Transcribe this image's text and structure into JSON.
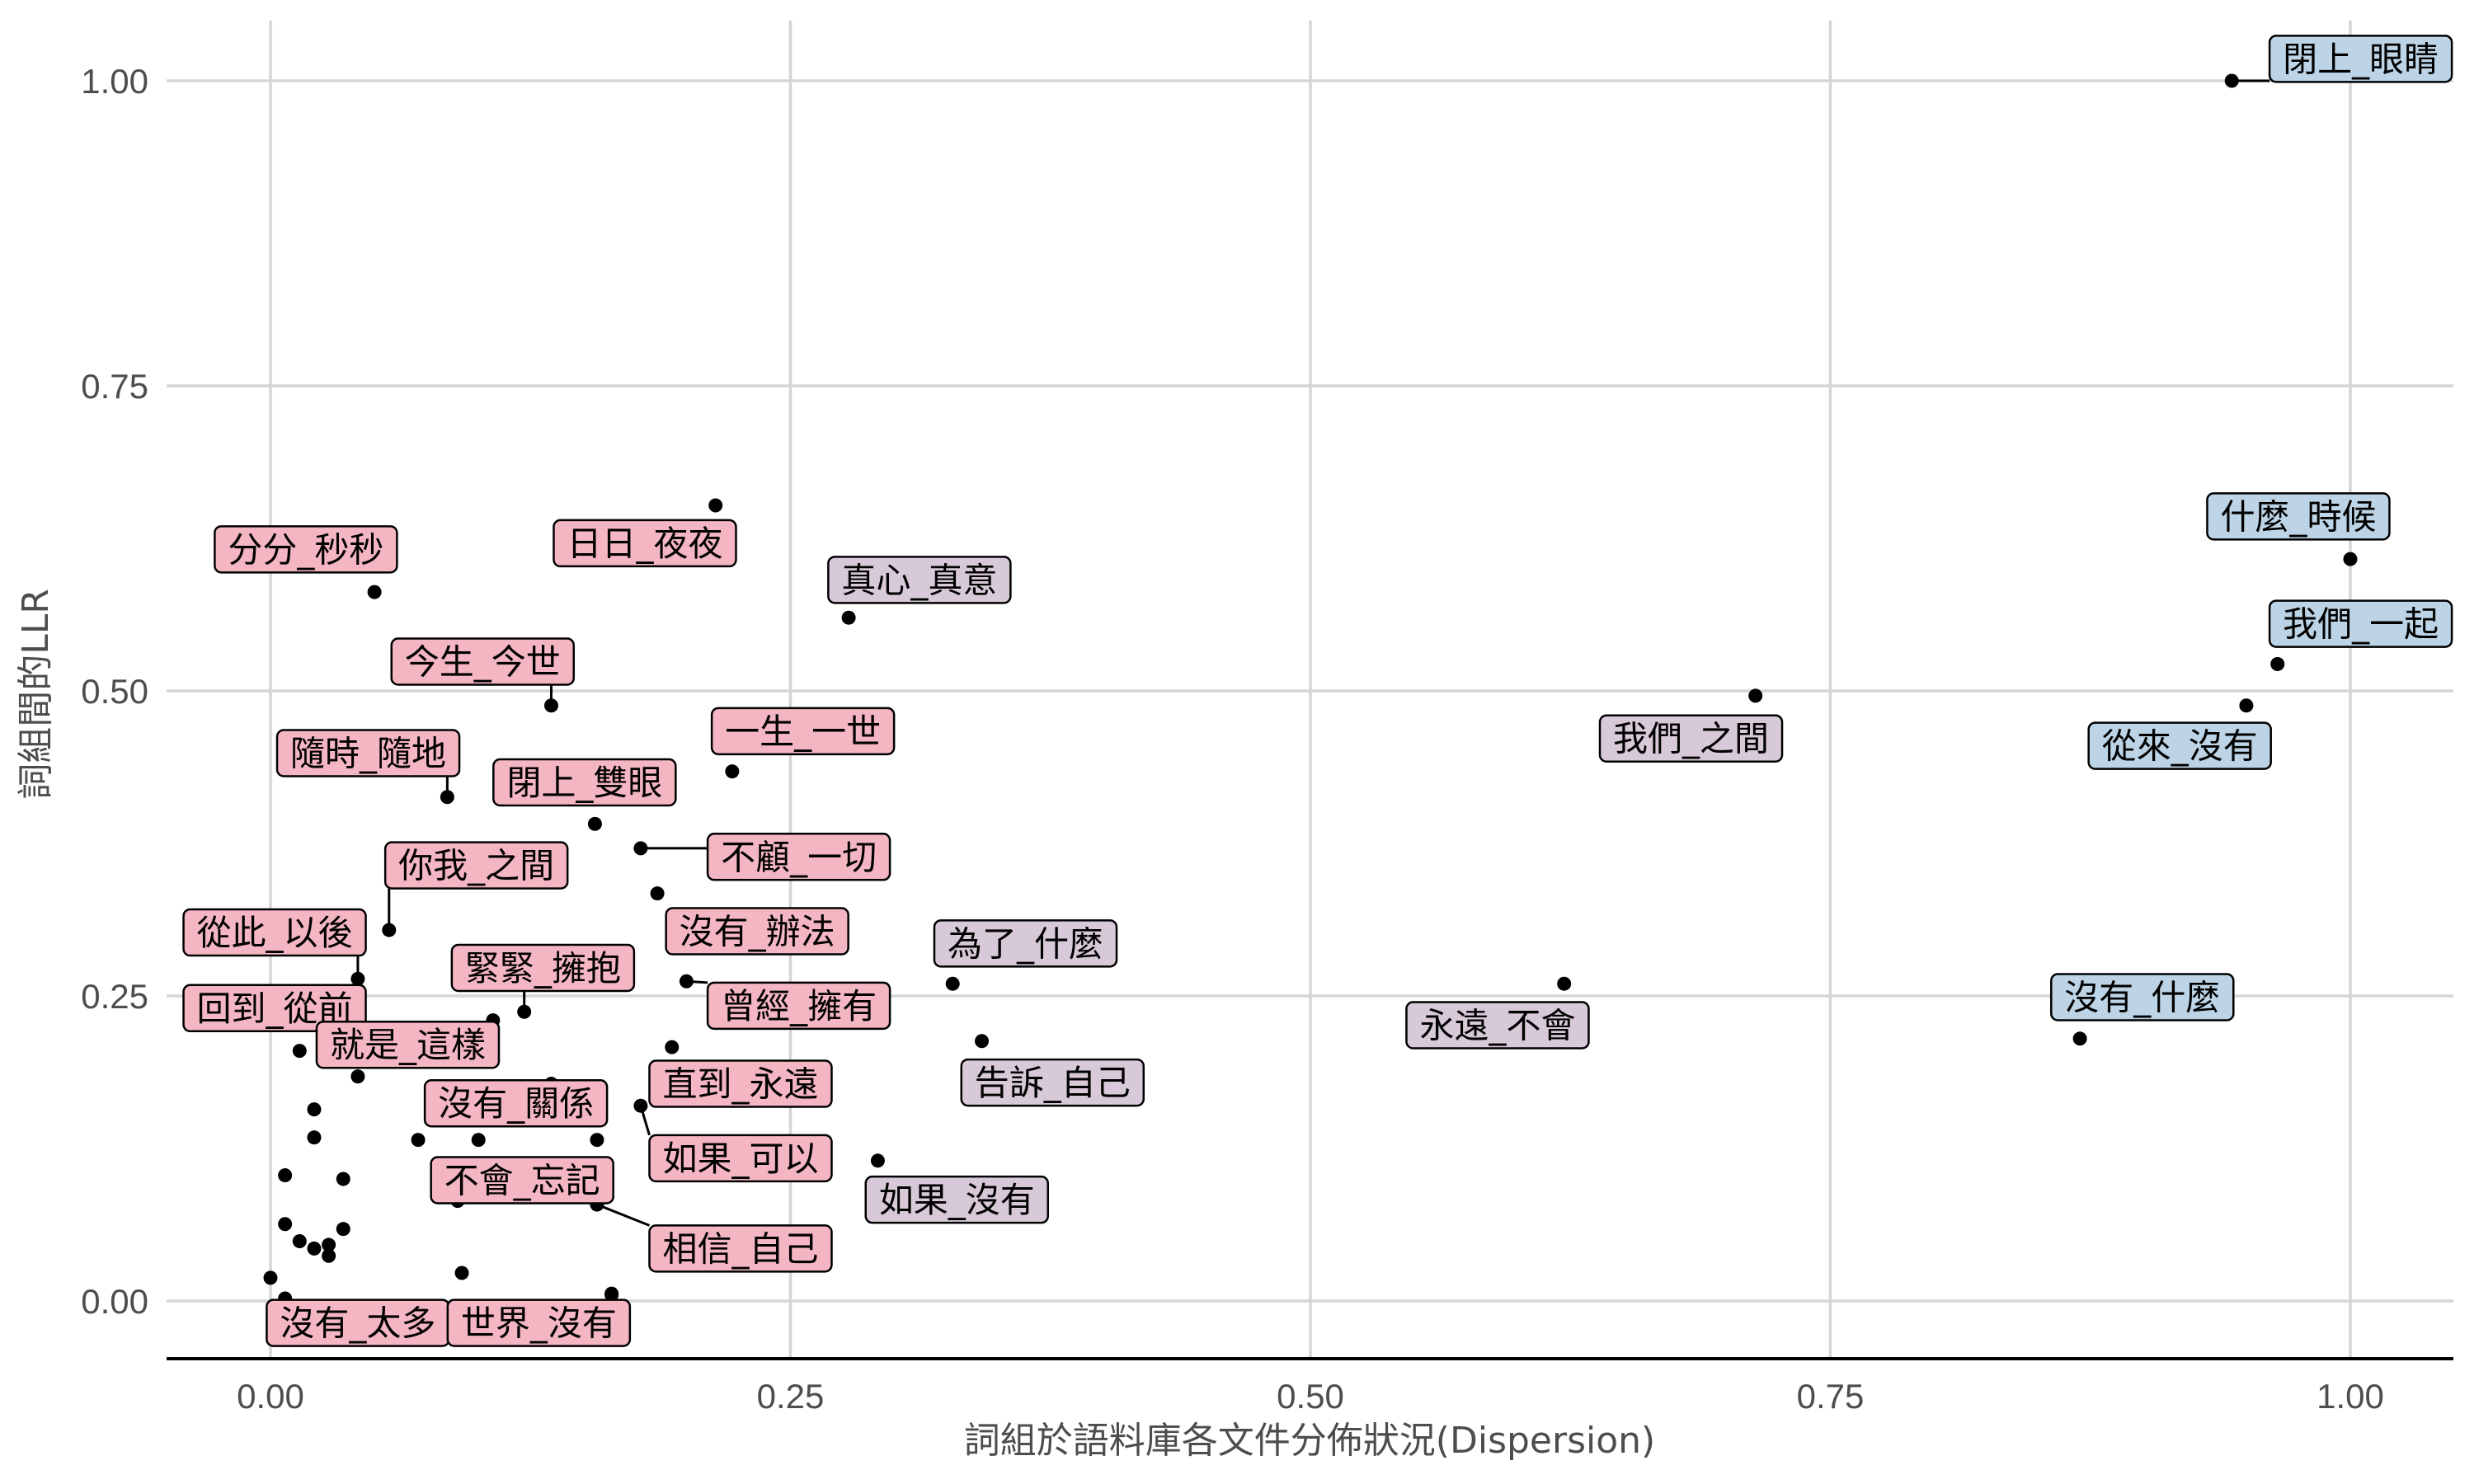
{
  "chart_data": {
    "type": "scatter",
    "title": "",
    "xlabel": "詞組於語料庫各文件分佈狀況(Dispersion)",
    "ylabel": "詞組間的LLR",
    "xlim": [
      -0.05,
      1.05
    ],
    "ylim": [
      -0.048,
      1.05
    ],
    "xticks": [
      0.0,
      0.25,
      0.5,
      0.75,
      1.0
    ],
    "xtick_labels": [
      "0.00",
      "0.25",
      "0.50",
      "0.75",
      "1.00"
    ],
    "yticks": [
      0.0,
      0.25,
      0.5,
      0.75,
      1.0
    ],
    "ytick_labels": [
      "0.00",
      "0.25",
      "0.50",
      "0.75",
      "1.00"
    ],
    "grid": true,
    "colors": {
      "high": "#bcd4e6",
      "mid": "#d8c9d8",
      "low": "#f4b6c2"
    },
    "labeled_points": [
      {
        "label": "閉上_眼睛",
        "x": 0.943,
        "y": 1.0,
        "group": "high",
        "lx": 1.005,
        "ly": 1.018
      },
      {
        "label": "什麼_時候",
        "x": 1.0,
        "y": 0.608,
        "group": "high",
        "lx": 0.975,
        "ly": 0.643
      },
      {
        "label": "我們_一起",
        "x": 0.965,
        "y": 0.522,
        "group": "high",
        "lx": 1.005,
        "ly": 0.555
      },
      {
        "label": "從來_沒有",
        "x": 0.95,
        "y": 0.488,
        "group": "high",
        "lx": 0.918,
        "ly": 0.455
      },
      {
        "label": "沒有_什麼",
        "x": 0.87,
        "y": 0.215,
        "group": "high",
        "lx": 0.9,
        "ly": 0.249
      },
      {
        "label": "我們_之間",
        "x": 0.714,
        "y": 0.496,
        "group": "mid",
        "lx": 0.683,
        "ly": 0.461
      },
      {
        "label": "永遠_不會",
        "x": 0.622,
        "y": 0.26,
        "group": "mid",
        "lx": 0.59,
        "ly": 0.226
      },
      {
        "label": "真心_真意",
        "x": 0.278,
        "y": 0.56,
        "group": "mid",
        "lx": 0.312,
        "ly": 0.591
      },
      {
        "label": "為了_什麼",
        "x": 0.328,
        "y": 0.26,
        "group": "mid",
        "lx": 0.363,
        "ly": 0.293
      },
      {
        "label": "告訴_自己",
        "x": 0.342,
        "y": 0.213,
        "group": "mid",
        "lx": 0.376,
        "ly": 0.179
      },
      {
        "label": "如果_沒有",
        "x": 0.292,
        "y": 0.115,
        "group": "mid",
        "lx": 0.33,
        "ly": 0.083
      },
      {
        "label": "日日_夜夜",
        "x": 0.214,
        "y": 0.652,
        "group": "low",
        "lx": 0.18,
        "ly": 0.621
      },
      {
        "label": "分分_秒秒",
        "x": 0.05,
        "y": 0.581,
        "group": "low",
        "lx": 0.017,
        "ly": 0.616
      },
      {
        "label": "今生_今世",
        "x": 0.135,
        "y": 0.488,
        "group": "low",
        "lx": 0.102,
        "ly": 0.524
      },
      {
        "label": "一生_一世",
        "x": 0.222,
        "y": 0.434,
        "group": "low",
        "lx": 0.256,
        "ly": 0.467
      },
      {
        "label": "隨時_隨地",
        "x": 0.085,
        "y": 0.413,
        "group": "low",
        "lx": 0.047,
        "ly": 0.449
      },
      {
        "label": "閉上_雙眼",
        "x": 0.156,
        "y": 0.391,
        "group": "low",
        "lx": 0.151,
        "ly": 0.425
      },
      {
        "label": "不顧_一切",
        "x": 0.178,
        "y": 0.371,
        "group": "low",
        "lx": 0.254,
        "ly": 0.364
      },
      {
        "label": "你我_之間",
        "x": 0.057,
        "y": 0.304,
        "group": "low",
        "lx": 0.099,
        "ly": 0.357
      },
      {
        "label": "沒有_辦法",
        "x": 0.186,
        "y": 0.334,
        "group": "low",
        "lx": 0.234,
        "ly": 0.303
      },
      {
        "label": "從此_以後",
        "x": 0.042,
        "y": 0.264,
        "group": "low",
        "lx": 0.002,
        "ly": 0.302
      },
      {
        "label": "緊緊_擁抱",
        "x": 0.122,
        "y": 0.237,
        "group": "low",
        "lx": 0.131,
        "ly": 0.273
      },
      {
        "label": "曾經_擁有",
        "x": 0.2,
        "y": 0.262,
        "group": "low",
        "lx": 0.254,
        "ly": 0.242
      },
      {
        "label": "回到_從前",
        "x": 0.014,
        "y": 0.205,
        "group": "low",
        "lx": 0.002,
        "ly": 0.24
      },
      {
        "label": "就是_這樣",
        "x": 0.042,
        "y": 0.184,
        "group": "low",
        "lx": 0.066,
        "ly": 0.21
      },
      {
        "label": "直到_永遠",
        "x": 0.193,
        "y": 0.208,
        "group": "low",
        "lx": 0.226,
        "ly": 0.178
      },
      {
        "label": "沒有_關係",
        "x": 0.135,
        "y": 0.178,
        "group": "low",
        "lx": 0.118,
        "ly": 0.162
      },
      {
        "label": "如果_可以",
        "x": 0.178,
        "y": 0.16,
        "group": "low",
        "lx": 0.226,
        "ly": 0.117
      },
      {
        "label": "不會_忘記",
        "x": 0.09,
        "y": 0.082,
        "group": "low",
        "lx": 0.121,
        "ly": 0.099
      },
      {
        "label": "相信_自己",
        "x": 0.157,
        "y": 0.079,
        "group": "low",
        "lx": 0.226,
        "ly": 0.043
      },
      {
        "label": "沒有_太多",
        "x": 0.007,
        "y": 0.002,
        "group": "low",
        "lx": 0.042,
        "ly": -0.018
      },
      {
        "label": "世界_沒有",
        "x": 0.164,
        "y": 0.005,
        "group": "low",
        "lx": 0.129,
        "ly": -0.018
      }
    ],
    "other_points": [
      {
        "x": 0.0,
        "y": 0.019
      },
      {
        "x": 0.007,
        "y": 0.103
      },
      {
        "x": 0.007,
        "y": 0.063
      },
      {
        "x": 0.014,
        "y": 0.049
      },
      {
        "x": 0.021,
        "y": 0.157
      },
      {
        "x": 0.021,
        "y": 0.134
      },
      {
        "x": 0.021,
        "y": 0.043
      },
      {
        "x": 0.028,
        "y": 0.046
      },
      {
        "x": 0.028,
        "y": 0.037
      },
      {
        "x": 0.035,
        "y": 0.1
      },
      {
        "x": 0.035,
        "y": 0.059
      },
      {
        "x": 0.071,
        "y": 0.132
      },
      {
        "x": 0.092,
        "y": 0.023
      },
      {
        "x": 0.1,
        "y": 0.132
      },
      {
        "x": 0.107,
        "y": 0.23
      },
      {
        "x": 0.157,
        "y": 0.132
      },
      {
        "x": 0.164,
        "y": 0.006
      }
    ]
  }
}
